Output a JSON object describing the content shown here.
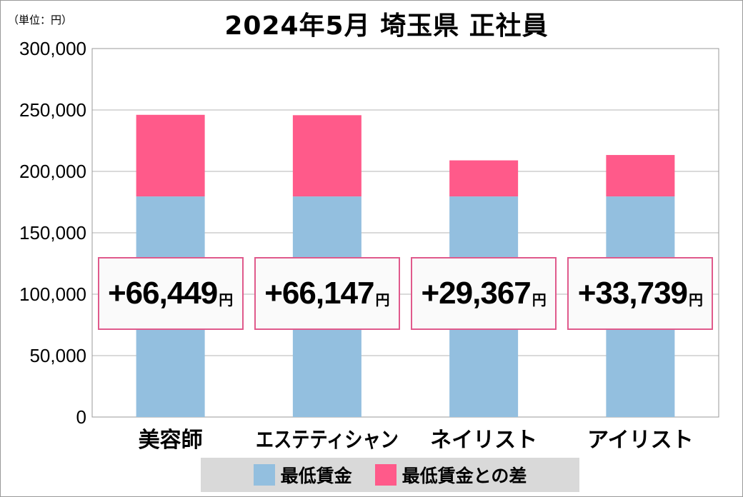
{
  "chart_data": {
    "type": "bar",
    "stacked": true,
    "title": "2024年5月 埼玉県 正社員",
    "unit_label": "（単位：円）",
    "categories": [
      "美容師",
      "エステティシャン",
      "ネイリスト",
      "アイリスト"
    ],
    "series": [
      {
        "name": "最低賃金",
        "color": "#93bfdf",
        "values": [
          179600,
          179600,
          179600,
          179600
        ]
      },
      {
        "name": "最低賃金との差",
        "color": "#ff5a8a",
        "values": [
          66449,
          66147,
          29367,
          33739
        ]
      }
    ],
    "difference_labels": [
      "+66,449",
      "+66,147",
      "+29,367",
      "+33,739"
    ],
    "difference_unit": "円",
    "ylim": [
      0,
      300000
    ],
    "yticks": [
      "0",
      "50,000",
      "100,000",
      "150,000",
      "200,000",
      "250,000",
      "300,000"
    ],
    "grid": true,
    "legend_position": "bottom"
  }
}
